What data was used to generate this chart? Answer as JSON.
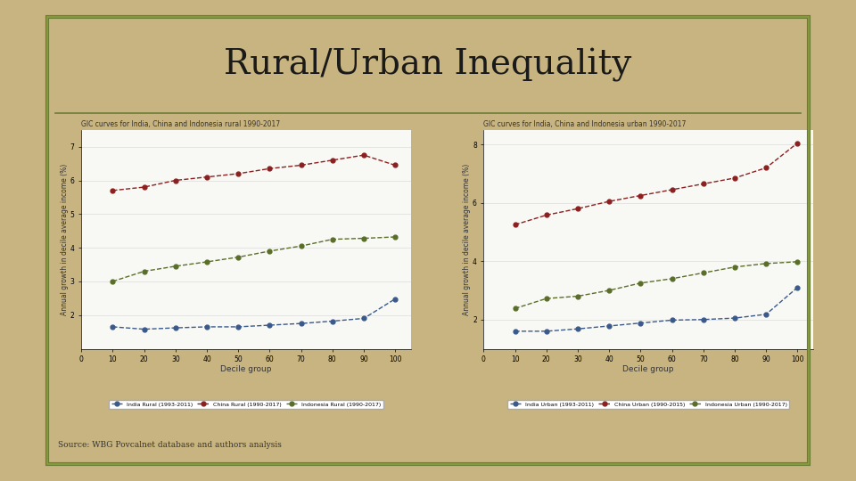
{
  "title": "Rural/Urban Inequality",
  "background_slide": "#c8b480",
  "background_paper": "#f8f8f4",
  "border_color_outer": "#6b7c35",
  "border_color_inner": "#8a9e40",
  "decile_groups": [
    10,
    20,
    30,
    40,
    50,
    60,
    70,
    80,
    90,
    100
  ],
  "rural_title": "GIC curves for India, China and Indonesia rural 1990-2017",
  "rural_ylabel": "Annual growth in decile average income (%)",
  "rural_xlabel": "Decile group",
  "rural_india": [
    1.65,
    1.58,
    1.62,
    1.65,
    1.65,
    1.7,
    1.75,
    1.82,
    1.9,
    2.48
  ],
  "rural_china": [
    5.7,
    5.8,
    6.0,
    6.1,
    6.2,
    6.35,
    6.45,
    6.6,
    6.75,
    6.45
  ],
  "rural_indonesia": [
    3.0,
    3.3,
    3.45,
    3.58,
    3.72,
    3.9,
    4.05,
    4.25,
    4.28,
    4.32
  ],
  "rural_india_label": "India Rural (1993-2011)",
  "rural_china_label": "China Rural (1990-2017)",
  "rural_indonesia_label": "Indonesia Rural (1990-2017)",
  "rural_ylim": [
    1.0,
    7.5
  ],
  "rural_yticks": [
    2,
    3,
    4,
    5,
    6,
    7
  ],
  "urban_title": "GIC curves for India, China and Indonesia urban 1990-2017",
  "urban_ylabel": "Annual growth in decile average income (%)",
  "urban_xlabel": "Decile group",
  "urban_india": [
    1.6,
    1.6,
    1.68,
    1.78,
    1.88,
    1.98,
    2.0,
    2.05,
    2.18,
    3.1
  ],
  "urban_china": [
    5.25,
    5.58,
    5.8,
    6.05,
    6.25,
    6.45,
    6.65,
    6.85,
    7.2,
    8.05
  ],
  "urban_indonesia": [
    2.38,
    2.72,
    2.8,
    3.0,
    3.25,
    3.4,
    3.6,
    3.8,
    3.92,
    3.98
  ],
  "urban_india_label": "India Urban (1993-2011)",
  "urban_china_label": "China Urban (1990-2015)",
  "urban_indonesia_label": "Indonesia Urban (1990-2017)",
  "urban_ylim": [
    1.0,
    8.5
  ],
  "urban_yticks": [
    2,
    4,
    6,
    8
  ],
  "color_india": "#3a5a8c",
  "color_china": "#8b2020",
  "color_indonesia": "#5a6e2a",
  "source_text": "Source: WBG Povcalnet database and authors analysis"
}
